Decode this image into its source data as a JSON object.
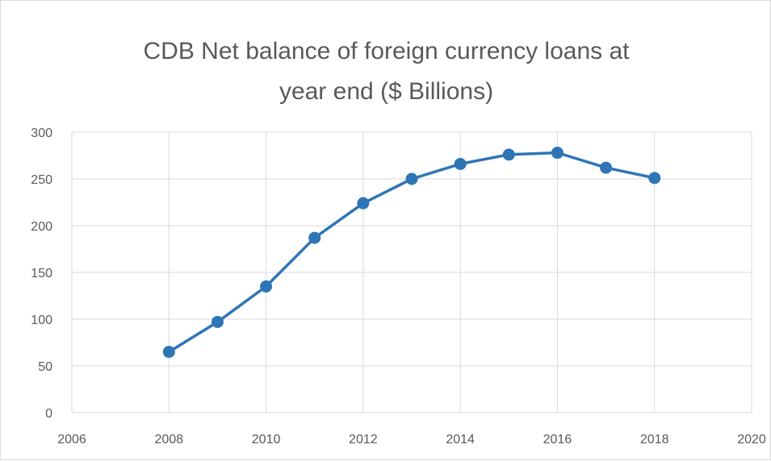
{
  "chart_data": {
    "type": "scatter",
    "mode": "lines+markers",
    "title_lines": [
      "CDB Net balance of foreign currency loans at",
      "year end ($ Billions)"
    ],
    "xlabel": "",
    "ylabel": "",
    "xlim": [
      2006,
      2020
    ],
    "ylim": [
      0,
      300
    ],
    "x_ticks": [
      2006,
      2008,
      2010,
      2012,
      2014,
      2016,
      2018,
      2020
    ],
    "y_ticks": [
      0,
      50,
      100,
      150,
      200,
      250,
      300
    ],
    "grid": true,
    "legend": "none",
    "series": [
      {
        "x": [
          2008,
          2009,
          2010,
          2011,
          2012,
          2013,
          2014,
          2015,
          2016,
          2017,
          2018
        ],
        "y": [
          65,
          97,
          135,
          187,
          224,
          250,
          266,
          276,
          278,
          262,
          251
        ],
        "color": "#2e75b6"
      }
    ]
  }
}
